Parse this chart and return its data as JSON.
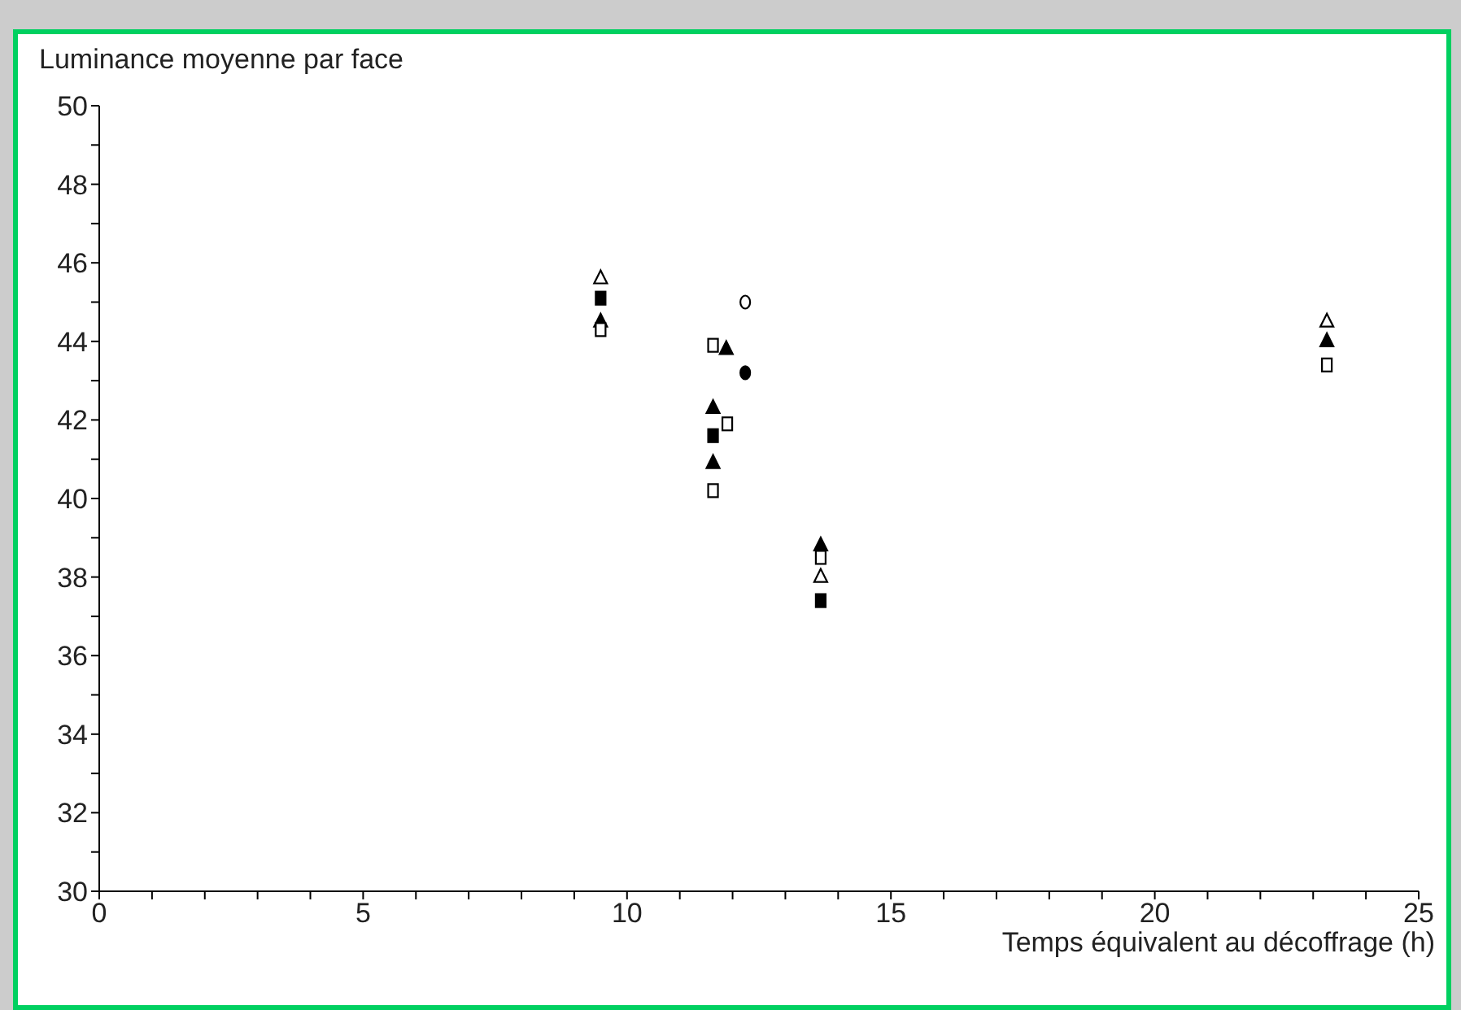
{
  "chart_data": {
    "type": "scatter",
    "xlabel": "Temps équivalent au décoffrage (h)",
    "ylabel": "Luminance moyenne par face",
    "xlim": [
      0,
      25
    ],
    "ylim": [
      30,
      50
    ],
    "xticks": [
      0,
      {
        "value": 1,
        "label": null
      },
      {
        "value": 2,
        "label": null
      },
      {
        "value": 3,
        "label": null
      },
      {
        "value": 4,
        "label": null
      },
      5,
      {
        "value": 6,
        "label": null
      },
      {
        "value": 7,
        "label": null
      },
      {
        "value": 8,
        "label": null
      },
      {
        "value": 9,
        "label": null
      },
      10,
      {
        "value": 11,
        "label": null
      },
      {
        "value": 12,
        "label": null
      },
      {
        "value": 13,
        "label": null
      },
      {
        "value": 14,
        "label": null
      },
      15,
      {
        "value": 16,
        "label": null
      },
      {
        "value": 17,
        "label": null
      },
      {
        "value": 18,
        "label": null
      },
      {
        "value": 19,
        "label": null
      },
      20,
      {
        "value": 21,
        "label": null
      },
      {
        "value": 22,
        "label": null
      },
      {
        "value": 23,
        "label": null
      },
      {
        "value": 24,
        "label": null
      },
      25
    ],
    "yticks": [
      30,
      {
        "value": 31,
        "label": null
      },
      32,
      {
        "value": 33,
        "label": null
      },
      34,
      {
        "value": 35,
        "label": null
      },
      36,
      {
        "value": 37,
        "label": null
      },
      38,
      {
        "value": 39,
        "label": null
      },
      40,
      {
        "value": 41,
        "label": null
      },
      42,
      {
        "value": 43,
        "label": null
      },
      44,
      {
        "value": 45,
        "label": null
      },
      46,
      {
        "value": 47,
        "label": null
      },
      48,
      {
        "value": 49,
        "label": null
      },
      50
    ],
    "grid": false,
    "legend": false,
    "series": [
      {
        "marker": "triangle",
        "color": "#ffffff",
        "x": [
          9.5,
          13.67,
          23.26
        ],
        "values": [
          45.6,
          38.0,
          44.5
        ]
      },
      {
        "marker": "square",
        "color": "#000000",
        "x": [
          9.5,
          11.63,
          13.67
        ],
        "values": [
          45.1,
          41.6,
          37.4
        ]
      },
      {
        "marker": "triangle",
        "color": "#000000",
        "x": [
          9.5,
          11.63,
          11.63,
          11.88,
          13.67,
          23.26
        ],
        "values": [
          44.5,
          42.3,
          40.9,
          43.8,
          38.8,
          44.0
        ]
      },
      {
        "marker": "square",
        "color": "#ffffff",
        "x": [
          9.5,
          11.63,
          11.63,
          11.9,
          13.67,
          23.26
        ],
        "values": [
          44.3,
          43.9,
          40.2,
          41.9,
          38.5,
          43.4
        ]
      },
      {
        "marker": "circle",
        "color": "#ffffff",
        "x": [
          12.24
        ],
        "values": [
          45.0
        ]
      },
      {
        "marker": "circle",
        "color": "#000000",
        "x": [
          12.24
        ],
        "values": [
          43.2
        ]
      }
    ]
  }
}
